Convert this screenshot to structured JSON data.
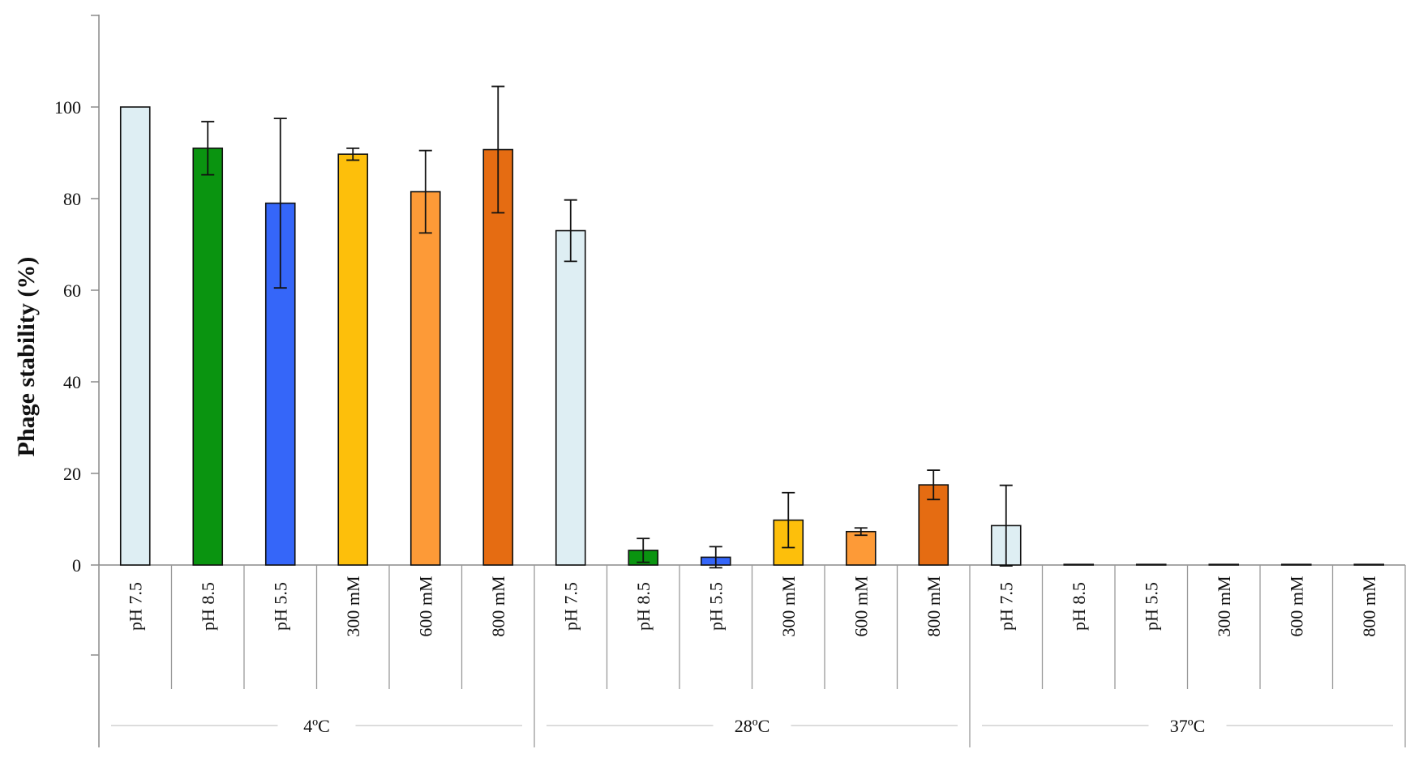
{
  "chart_data": {
    "type": "bar",
    "ylabel": "Phage stability  (%)",
    "ylim": [
      0,
      120
    ],
    "yticks": [
      0,
      20,
      40,
      60,
      80,
      100
    ],
    "grid": false,
    "groups": [
      {
        "label": "4ºC",
        "bars": [
          {
            "category": "pH 7.5",
            "value": 100,
            "error": 0,
            "color": "#deeef3"
          },
          {
            "category": "pH 8.5",
            "value": 91,
            "error": 5.8,
            "color": "#0a9410"
          },
          {
            "category": "pH 5.5",
            "value": 79,
            "error": 18.5,
            "color": "#3566f9"
          },
          {
            "category": "300 mM",
            "value": 89.7,
            "error": 1.3,
            "color": "#fdbf0b"
          },
          {
            "category": "600 mM",
            "value": 81.5,
            "error": 9,
            "color": "#fd9a37"
          },
          {
            "category": "800 mM",
            "value": 90.7,
            "error": 13.8,
            "color": "#e56c12"
          }
        ]
      },
      {
        "label": "28ºC",
        "bars": [
          {
            "category": "pH 7.5",
            "value": 73,
            "error": 6.7,
            "color": "#deeef3"
          },
          {
            "category": "pH 8.5",
            "value": 3.2,
            "error": 2.6,
            "color": "#0a9410"
          },
          {
            "category": "pH 5.5",
            "value": 1.7,
            "error": 2.3,
            "color": "#3566f9"
          },
          {
            "category": "300 mM",
            "value": 9.8,
            "error": 6,
            "color": "#fdbf0b"
          },
          {
            "category": "600 mM",
            "value": 7.3,
            "error": 0.8,
            "color": "#fd9a37"
          },
          {
            "category": "800 mM",
            "value": 17.5,
            "error": 3.2,
            "color": "#e56c12"
          }
        ]
      },
      {
        "label": "37ºC",
        "bars": [
          {
            "category": "pH 7.5",
            "value": 8.6,
            "error": 8.8,
            "color": "#deeef3"
          },
          {
            "category": "pH 8.5",
            "value": 0.1,
            "error": 0,
            "color": "#0a9410"
          },
          {
            "category": "pH 5.5",
            "value": 0,
            "error": 0,
            "color": "#3566f9"
          },
          {
            "category": "300 mM",
            "value": 0.1,
            "error": 0,
            "color": "#fdbf0b"
          },
          {
            "category": "600 mM",
            "value": 0.1,
            "error": 0,
            "color": "#fd9a37"
          },
          {
            "category": "800 mM",
            "value": 0.1,
            "error": 0,
            "color": "#e56c12"
          }
        ]
      }
    ]
  }
}
